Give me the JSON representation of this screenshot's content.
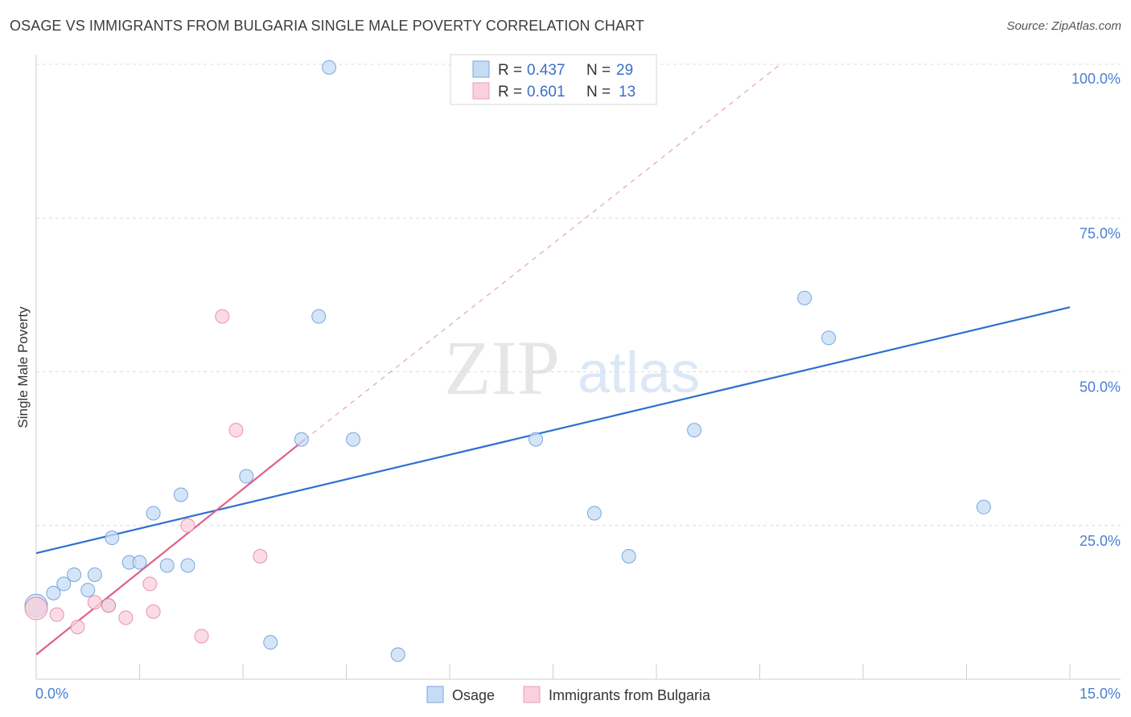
{
  "title": "OSAGE VS IMMIGRANTS FROM BULGARIA SINGLE MALE POVERTY CORRELATION CHART",
  "source": "Source: ZipAtlas.com",
  "watermark": {
    "zip": "ZIP",
    "atlas": "atlas"
  },
  "legend": {
    "r_label": "R =",
    "n_label": "N =",
    "rows": [
      {
        "series": "Osage",
        "r": "0.437",
        "n": "29"
      },
      {
        "series": "Immigrants from Bulgaria",
        "r": "0.601",
        "n": "13"
      }
    ]
  },
  "chart_data": {
    "type": "scatter",
    "title": "OSAGE VS IMMIGRANTS FROM BULGARIA SINGLE MALE POVERTY CORRELATION CHART",
    "xlabel": "",
    "ylabel": "Single Male Poverty",
    "xlim": [
      0,
      15
    ],
    "ylim": [
      0,
      100
    ],
    "x_tick_labels": [
      "0.0%",
      "15.0%"
    ],
    "y_ticks": [
      25,
      50,
      75,
      100
    ],
    "y_tick_labels": [
      "25.0%",
      "50.0%",
      "75.0%",
      "100.0%"
    ],
    "grid": true,
    "series": [
      {
        "name": "Osage",
        "color": "#5b93d9",
        "fill": "#c6dcf5",
        "points": [
          [
            0.05,
            12.0
          ],
          [
            0.25,
            14.0
          ],
          [
            0.4,
            15.5
          ],
          [
            0.55,
            17.0
          ],
          [
            0.75,
            14.5
          ],
          [
            0.85,
            17.0
          ],
          [
            1.05,
            12.0
          ],
          [
            1.1,
            23.0
          ],
          [
            1.35,
            19.0
          ],
          [
            1.5,
            19.0
          ],
          [
            1.7,
            27.0
          ],
          [
            1.9,
            18.5
          ],
          [
            2.1,
            30.0
          ],
          [
            2.2,
            18.5
          ],
          [
            3.05,
            33.0
          ],
          [
            3.4,
            6.0
          ],
          [
            3.85,
            39.0
          ],
          [
            4.1,
            59.0
          ],
          [
            4.25,
            99.5
          ],
          [
            4.6,
            39.0
          ],
          [
            5.25,
            4.0
          ],
          [
            7.25,
            39.0
          ],
          [
            8.1,
            27.0
          ],
          [
            8.6,
            20.0
          ],
          [
            9.55,
            40.5
          ],
          [
            11.15,
            62.0
          ],
          [
            11.5,
            55.5
          ],
          [
            13.75,
            28.0
          ],
          [
            0.0,
            12.0
          ]
        ],
        "trendline": {
          "x": [
            0,
            15
          ],
          "y": [
            20.5,
            60.5
          ]
        }
      },
      {
        "name": "Immigrants from Bulgaria",
        "color": "#e8799e",
        "fill": "#f9d0dc",
        "points": [
          [
            0.0,
            11.5
          ],
          [
            0.3,
            10.5
          ],
          [
            0.6,
            8.5
          ],
          [
            0.85,
            12.5
          ],
          [
            1.05,
            12.0
          ],
          [
            1.3,
            10.0
          ],
          [
            1.65,
            15.5
          ],
          [
            1.7,
            11.0
          ],
          [
            2.2,
            25.0
          ],
          [
            2.4,
            7.0
          ],
          [
            2.7,
            59.0
          ],
          [
            2.9,
            40.5
          ],
          [
            3.25,
            20.0
          ]
        ],
        "trendline": {
          "x": [
            0,
            3.9
          ],
          "y": [
            4.0,
            39.0
          ]
        },
        "trendline_extended": {
          "x": [
            3.9,
            10.8
          ],
          "y": [
            39.0,
            100.0
          ]
        }
      }
    ]
  },
  "bottom_legend": [
    {
      "label": "Osage"
    },
    {
      "label": "Immigrants from Bulgaria"
    }
  ]
}
